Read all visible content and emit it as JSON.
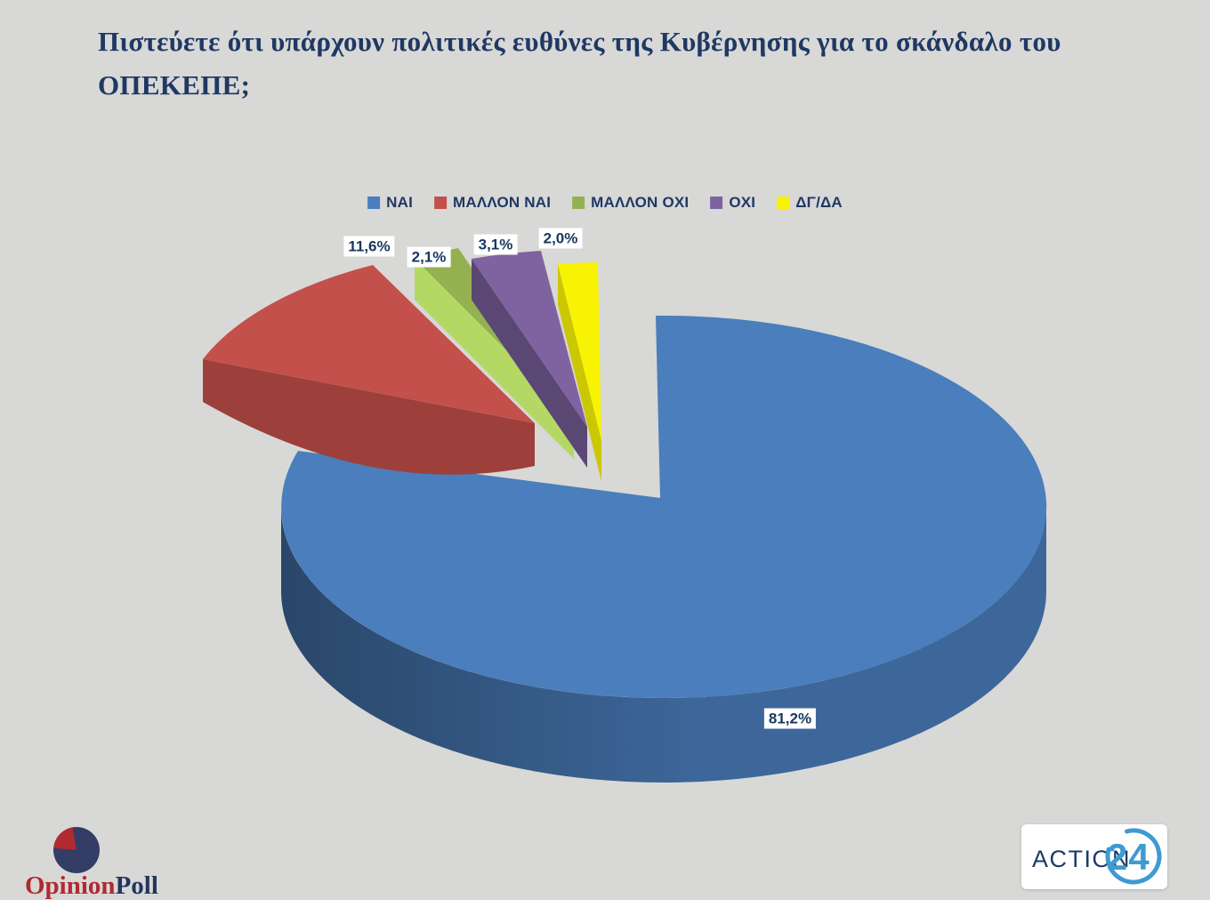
{
  "title": "Πιστεύετε ότι υπάρχουν πολιτικές ευθύνες της Κυβέρνησης για το σκάνδαλο του ΟΠΕΚΕΠΕ;",
  "chart_data": {
    "type": "pie",
    "style": "3d-exploded",
    "title": "Πιστεύετε ότι υπάρχουν πολιτικές ευθύνες της Κυβέρνησης για το σκάνδαλο του ΟΠΕΚΕΠΕ;",
    "unit": "%",
    "categories": [
      "ΝΑΙ",
      "ΜΑΛΛΟΝ ΝΑΙ",
      "ΜΑΛΛΟΝ ΟΧΙ",
      "ΟΧΙ",
      "ΔΓ/ΔΑ"
    ],
    "values": [
      81.2,
      11.6,
      2.1,
      3.1,
      2.0
    ],
    "labels": [
      "81,2%",
      "11,6%",
      "2,1%",
      "3,1%",
      "2,0%"
    ],
    "colors": [
      "#4a7ebc",
      "#c4504b",
      "#94b152",
      "#7f63a1",
      "#f7f303"
    ],
    "legend_position": "top",
    "background_color": "#d8d8d6",
    "text_color": "#1f3864"
  },
  "legend": {
    "items": [
      {
        "label": "ΝΑΙ",
        "color": "#4a7ebc"
      },
      {
        "label": "ΜΑΛΛΟΝ ΝΑΙ",
        "color": "#c4504b"
      },
      {
        "label": "ΜΑΛΛΟΝ ΟΧΙ",
        "color": "#94b152"
      },
      {
        "label": "ΟΧΙ",
        "color": "#7f63a1"
      },
      {
        "label": "ΔΓ/ΔΑ",
        "color": "#f7f303"
      }
    ]
  },
  "footer": {
    "opinion_poll": {
      "text_primary": "Opinion",
      "text_secondary": "Poll"
    },
    "action24": {
      "text": "ACTION",
      "number": "24"
    }
  }
}
